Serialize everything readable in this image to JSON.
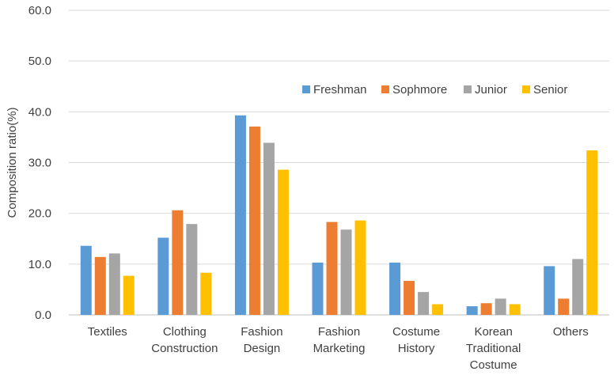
{
  "chart_data": {
    "type": "bar",
    "title": "",
    "xlabel": "",
    "ylabel": "Composition ratio(%)",
    "ylim": [
      0,
      60
    ],
    "yticks": [
      "0.0",
      "10.0",
      "20.0",
      "30.0",
      "40.0",
      "50.0",
      "60.0"
    ],
    "grid": true,
    "legend_position": "top-right",
    "categories": [
      [
        "Textiles"
      ],
      [
        "Clothing",
        "Construction"
      ],
      [
        "Fashion",
        "Design"
      ],
      [
        "Fashion",
        "Marketing"
      ],
      [
        "Costume",
        "History"
      ],
      [
        "Korean",
        "Traditional",
        "Costume"
      ],
      [
        "Others"
      ]
    ],
    "series": [
      {
        "name": "Freshman",
        "color": "#5B9BD5",
        "values": [
          13.6,
          15.2,
          39.3,
          10.3,
          10.3,
          1.7,
          9.6
        ]
      },
      {
        "name": "Sophmore",
        "color": "#ED7D31",
        "values": [
          11.4,
          20.6,
          37.1,
          18.3,
          6.7,
          2.3,
          3.2
        ]
      },
      {
        "name": "Junior",
        "color": "#A5A5A5",
        "values": [
          12.1,
          17.9,
          33.9,
          16.8,
          4.5,
          3.2,
          11.0
        ]
      },
      {
        "name": "Senior",
        "color": "#FFC000",
        "values": [
          7.7,
          8.3,
          28.6,
          18.6,
          2.1,
          2.1,
          32.4
        ]
      }
    ]
  }
}
